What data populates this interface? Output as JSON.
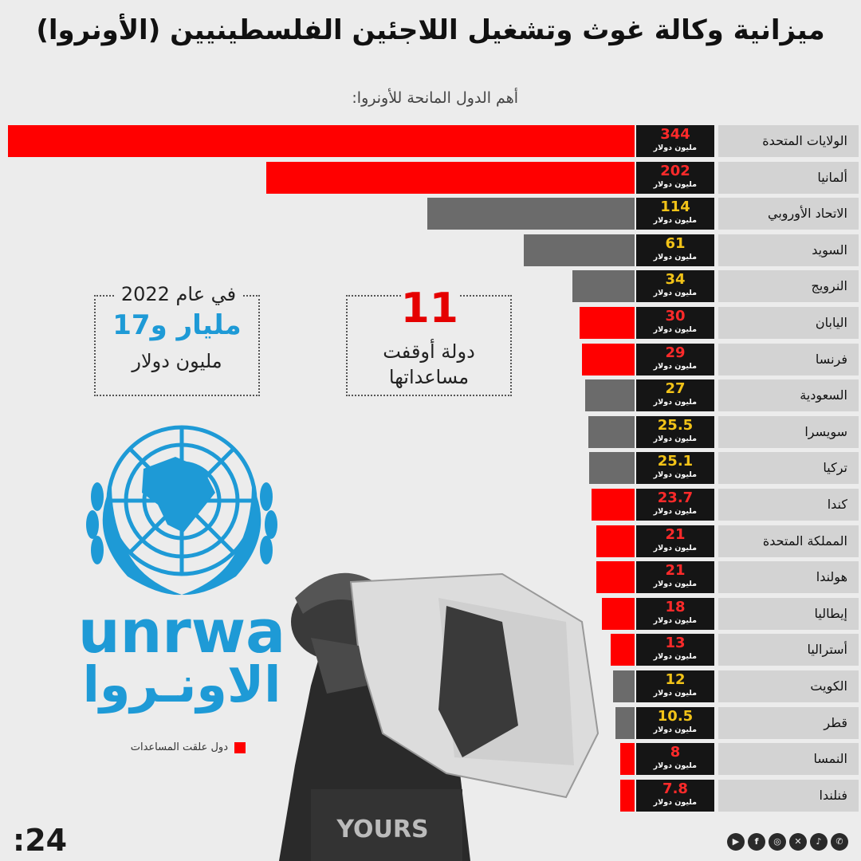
{
  "title": "ميزانية وكالة غوث وتشغيل اللاجئين الفلسطينيين (الأونروا)",
  "subtitle": "أهم الدول المانحة للأونروا:",
  "unit_label": "مليون دولار",
  "colors": {
    "suspended": "#ff0000",
    "active": "#6b6b6b",
    "value_suspended": "#ff2a2a",
    "value_active": "#f2c318",
    "accent_blue": "#1e9ad6"
  },
  "chart_data": {
    "type": "bar",
    "orientation": "horizontal",
    "title": "أهم الدول المانحة للأونروا:",
    "categories": [
      "الولايات المتحدة",
      "ألمانيا",
      "الاتحاد الأوروبي",
      "السويد",
      "النرويج",
      "اليابان",
      "فرنسا",
      "السعودية",
      "سويسرا",
      "تركيا",
      "كندا",
      "المملكة المتحدة",
      "هولندا",
      "إيطاليا",
      "أستراليا",
      "الكويت",
      "قطر",
      "النمسا",
      "فنلندا"
    ],
    "values": [
      344,
      202,
      114,
      61,
      34,
      30,
      29,
      27,
      25.5,
      25.1,
      23.7,
      21,
      21,
      18,
      13,
      12,
      10.5,
      8,
      7.8
    ],
    "value_labels": [
      "344",
      "202",
      "114",
      "61",
      "34",
      "30",
      "29",
      "27",
      "25.5",
      "25.1",
      "23.7",
      "21",
      "21",
      "18",
      "13",
      "12",
      "10.5",
      "8",
      "7.8"
    ],
    "suspended": [
      true,
      true,
      false,
      false,
      false,
      true,
      true,
      false,
      false,
      false,
      true,
      true,
      true,
      true,
      true,
      false,
      false,
      true,
      true
    ],
    "unit": "مليون دولار",
    "legend": [
      {
        "name": "دول علقت المساعدات",
        "color": "#ff0000"
      }
    ]
  },
  "stats": {
    "suspended_count": "11",
    "suspended_line1": "دولة أوقفت",
    "suspended_line2": "مساعداتها",
    "year_label": "في عام 2022",
    "budget_big": "مليار و17",
    "budget_unit": "مليون دولار"
  },
  "logo": {
    "latin": "unrwa",
    "arabic": "الاونـروا"
  },
  "legend_label": "دول علقت المساعدات",
  "brand": ":24",
  "social_icons": [
    "youtube-icon",
    "facebook-icon",
    "instagram-icon",
    "x-icon",
    "tiktok-icon",
    "whatsapp-icon"
  ]
}
